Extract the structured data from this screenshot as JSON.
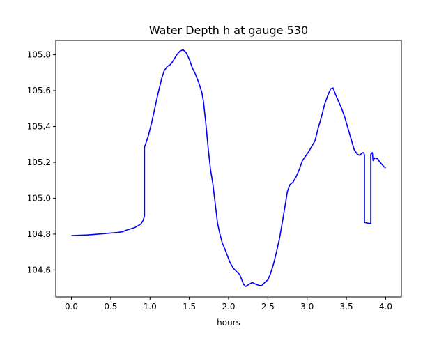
{
  "chart_data": {
    "type": "line",
    "title": "Water Depth h at gauge 530",
    "xlabel": "hours",
    "ylabel": "",
    "xlim": [
      -0.2,
      4.2
    ],
    "ylim": [
      104.45,
      105.88
    ],
    "xticks": [
      0.0,
      0.5,
      1.0,
      1.5,
      2.0,
      2.5,
      3.0,
      3.5,
      4.0
    ],
    "xtick_labels": [
      "0.0",
      "0.5",
      "1.0",
      "1.5",
      "2.0",
      "2.5",
      "3.0",
      "3.5",
      "4.0"
    ],
    "yticks": [
      104.6,
      104.8,
      105.0,
      105.2,
      105.4,
      105.6,
      105.8
    ],
    "ytick_labels": [
      "104.6",
      "104.8",
      "105.0",
      "105.2",
      "105.4",
      "105.6",
      "105.8"
    ],
    "grid": false,
    "series": [
      {
        "color": "#0000ff",
        "points": [
          [
            0.0,
            104.792
          ],
          [
            0.2,
            104.795
          ],
          [
            0.4,
            104.802
          ],
          [
            0.6,
            104.81
          ],
          [
            0.65,
            104.813
          ],
          [
            0.7,
            104.822
          ],
          [
            0.8,
            104.835
          ],
          [
            0.88,
            104.855
          ],
          [
            0.91,
            104.875
          ],
          [
            0.93,
            104.9
          ],
          [
            0.93,
            105.285
          ],
          [
            0.95,
            105.31
          ],
          [
            0.98,
            105.35
          ],
          [
            1.02,
            105.42
          ],
          [
            1.06,
            105.5
          ],
          [
            1.1,
            105.58
          ],
          [
            1.15,
            105.67
          ],
          [
            1.18,
            105.71
          ],
          [
            1.22,
            105.735
          ],
          [
            1.26,
            105.745
          ],
          [
            1.3,
            105.77
          ],
          [
            1.34,
            105.8
          ],
          [
            1.38,
            105.82
          ],
          [
            1.42,
            105.828
          ],
          [
            1.46,
            105.812
          ],
          [
            1.5,
            105.775
          ],
          [
            1.54,
            105.725
          ],
          [
            1.58,
            105.69
          ],
          [
            1.62,
            105.645
          ],
          [
            1.66,
            105.59
          ],
          [
            1.68,
            105.54
          ],
          [
            1.71,
            105.42
          ],
          [
            1.74,
            105.28
          ],
          [
            1.77,
            105.16
          ],
          [
            1.8,
            105.08
          ],
          [
            1.83,
            104.97
          ],
          [
            1.86,
            104.86
          ],
          [
            1.89,
            104.8
          ],
          [
            1.92,
            104.75
          ],
          [
            1.95,
            104.72
          ],
          [
            1.98,
            104.685
          ],
          [
            2.02,
            104.64
          ],
          [
            2.06,
            104.61
          ],
          [
            2.1,
            104.592
          ],
          [
            2.14,
            104.575
          ],
          [
            2.16,
            104.555
          ],
          [
            2.19,
            104.52
          ],
          [
            2.22,
            104.508
          ],
          [
            2.26,
            104.52
          ],
          [
            2.3,
            104.53
          ],
          [
            2.34,
            104.522
          ],
          [
            2.38,
            104.515
          ],
          [
            2.42,
            104.512
          ],
          [
            2.46,
            104.53
          ],
          [
            2.5,
            104.545
          ],
          [
            2.53,
            104.575
          ],
          [
            2.57,
            104.63
          ],
          [
            2.61,
            104.7
          ],
          [
            2.65,
            104.78
          ],
          [
            2.69,
            104.88
          ],
          [
            2.72,
            104.96
          ],
          [
            2.75,
            105.04
          ],
          [
            2.78,
            105.075
          ],
          [
            2.82,
            105.09
          ],
          [
            2.86,
            105.12
          ],
          [
            2.9,
            105.16
          ],
          [
            2.94,
            105.21
          ],
          [
            2.98,
            105.235
          ],
          [
            3.02,
            105.26
          ],
          [
            3.06,
            105.29
          ],
          [
            3.1,
            105.32
          ],
          [
            3.14,
            105.39
          ],
          [
            3.18,
            105.45
          ],
          [
            3.22,
            105.52
          ],
          [
            3.26,
            105.57
          ],
          [
            3.3,
            105.61
          ],
          [
            3.33,
            105.615
          ],
          [
            3.36,
            105.58
          ],
          [
            3.4,
            105.54
          ],
          [
            3.44,
            105.5
          ],
          [
            3.48,
            105.45
          ],
          [
            3.52,
            105.39
          ],
          [
            3.56,
            105.33
          ],
          [
            3.6,
            105.27
          ],
          [
            3.64,
            105.245
          ],
          [
            3.67,
            105.24
          ],
          [
            3.7,
            105.252
          ],
          [
            3.72,
            105.255
          ],
          [
            3.73,
            105.24
          ],
          [
            3.73,
            104.865
          ],
          [
            3.76,
            104.862
          ],
          [
            3.79,
            104.86
          ],
          [
            3.81,
            104.86
          ],
          [
            3.81,
            105.245
          ],
          [
            3.83,
            105.255
          ],
          [
            3.84,
            105.21
          ],
          [
            3.86,
            105.225
          ],
          [
            3.9,
            105.22
          ],
          [
            3.92,
            105.205
          ],
          [
            3.95,
            105.19
          ],
          [
            3.98,
            105.175
          ],
          [
            4.0,
            105.168
          ]
        ]
      }
    ]
  }
}
